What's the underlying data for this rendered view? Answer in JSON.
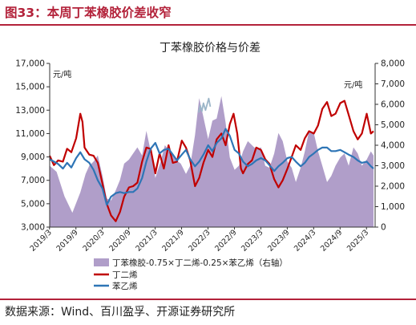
{
  "figure_title": "图33：本周丁苯橡胶价差收窄",
  "source_note": "数据来源：Wind、百川盈孚、开源证券研究所",
  "colors": {
    "brand": "#b3223a",
    "spread_fill": "#b09ec9",
    "butadiene": "#c00000",
    "styrene": "#2e75b6",
    "outlier": "#9bb5c8"
  },
  "chart_data": {
    "type": "line",
    "title": "丁苯橡胶价格与价差",
    "x_tick_labels": [
      "2019/3",
      "2019/9",
      "2020/3",
      "2020/9",
      "2021/3",
      "2021/9",
      "2022/3",
      "2022/9",
      "2023/3",
      "2023/9",
      "2024/3",
      "2024/9",
      "2025/3"
    ],
    "left_axis": {
      "unit": "元/吨",
      "min": 3000,
      "max": 17000,
      "ticks": [
        "3,000",
        "5,000",
        "7,000",
        "9,000",
        "11,000",
        "13,000",
        "15,000",
        "17,000"
      ]
    },
    "right_axis": {
      "unit": "元/吨",
      "min": 0,
      "max": 8000,
      "ticks": [
        "0",
        "1,000",
        "2,000",
        "3,000",
        "4,000",
        "5,000",
        "6,000",
        "7,000",
        "8,000"
      ]
    },
    "series": [
      {
        "name": "丁苯橡胶-0.75×丁二烯-0.25×苯乙烯（右轴）",
        "type": "area",
        "axis": "right",
        "points": [
          [
            2019.17,
            3000
          ],
          [
            2019.3,
            2700
          ],
          [
            2019.45,
            1500
          ],
          [
            2019.6,
            700
          ],
          [
            2019.75,
            1700
          ],
          [
            2019.85,
            2600
          ],
          [
            2019.92,
            3000
          ],
          [
            2020.0,
            3200
          ],
          [
            2020.08,
            3500
          ],
          [
            2020.17,
            2500
          ],
          [
            2020.25,
            1400
          ],
          [
            2020.33,
            1300
          ],
          [
            2020.42,
            1800
          ],
          [
            2020.5,
            2300
          ],
          [
            2020.58,
            3100
          ],
          [
            2020.67,
            3300
          ],
          [
            2020.75,
            3600
          ],
          [
            2020.83,
            3900
          ],
          [
            2020.92,
            3500
          ],
          [
            2021.0,
            4700
          ],
          [
            2021.1,
            3500
          ],
          [
            2021.17,
            2400
          ],
          [
            2021.27,
            3200
          ],
          [
            2021.35,
            4000
          ],
          [
            2021.45,
            3700
          ],
          [
            2021.55,
            3300
          ],
          [
            2021.65,
            3100
          ],
          [
            2021.75,
            2600
          ],
          [
            2021.83,
            3000
          ],
          [
            2021.92,
            4500
          ],
          [
            2022.0,
            6300
          ],
          [
            2022.07,
            5500
          ],
          [
            2022.17,
            4300
          ],
          [
            2022.25,
            5200
          ],
          [
            2022.33,
            5300
          ],
          [
            2022.42,
            6400
          ],
          [
            2022.5,
            5100
          ],
          [
            2022.58,
            3400
          ],
          [
            2022.67,
            2800
          ],
          [
            2022.75,
            3000
          ],
          [
            2022.83,
            3700
          ],
          [
            2022.92,
            4200
          ],
          [
            2023.0,
            4000
          ],
          [
            2023.08,
            3800
          ],
          [
            2023.17,
            3900
          ],
          [
            2023.25,
            3000
          ],
          [
            2023.33,
            2900
          ],
          [
            2023.42,
            3600
          ],
          [
            2023.5,
            4600
          ],
          [
            2023.58,
            4200
          ],
          [
            2023.67,
            3200
          ],
          [
            2023.75,
            2900
          ],
          [
            2023.83,
            2200
          ],
          [
            2023.92,
            2900
          ],
          [
            2024.0,
            3700
          ],
          [
            2024.08,
            4700
          ],
          [
            2024.17,
            4600
          ],
          [
            2024.25,
            3700
          ],
          [
            2024.33,
            3000
          ],
          [
            2024.42,
            2200
          ],
          [
            2024.5,
            2500
          ],
          [
            2024.58,
            3000
          ],
          [
            2024.67,
            3400
          ],
          [
            2024.75,
            3600
          ],
          [
            2024.83,
            3000
          ],
          [
            2024.92,
            3900
          ],
          [
            2025.0,
            3600
          ],
          [
            2025.08,
            3000
          ],
          [
            2025.17,
            3300
          ],
          [
            2025.25,
            3700
          ],
          [
            2025.3,
            3500
          ]
        ]
      },
      {
        "name": "丁二烯",
        "type": "line",
        "axis": "left",
        "points": [
          [
            2019.17,
            9100
          ],
          [
            2019.25,
            8300
          ],
          [
            2019.33,
            8700
          ],
          [
            2019.42,
            8600
          ],
          [
            2019.5,
            9700
          ],
          [
            2019.58,
            9400
          ],
          [
            2019.67,
            10600
          ],
          [
            2019.75,
            12700
          ],
          [
            2019.79,
            12000
          ],
          [
            2019.83,
            9800
          ],
          [
            2019.92,
            9200
          ],
          [
            2020.0,
            9100
          ],
          [
            2020.08,
            8500
          ],
          [
            2020.17,
            6700
          ],
          [
            2020.25,
            5000
          ],
          [
            2020.33,
            4000
          ],
          [
            2020.42,
            3500
          ],
          [
            2020.5,
            4300
          ],
          [
            2020.58,
            5600
          ],
          [
            2020.67,
            6400
          ],
          [
            2020.75,
            6500
          ],
          [
            2020.83,
            6800
          ],
          [
            2020.92,
            8600
          ],
          [
            2021.0,
            9800
          ],
          [
            2021.08,
            9700
          ],
          [
            2021.17,
            7600
          ],
          [
            2021.25,
            9300
          ],
          [
            2021.33,
            8000
          ],
          [
            2021.42,
            10000
          ],
          [
            2021.5,
            8500
          ],
          [
            2021.58,
            8600
          ],
          [
            2021.67,
            10400
          ],
          [
            2021.75,
            9800
          ],
          [
            2021.83,
            8700
          ],
          [
            2021.92,
            6500
          ],
          [
            2022.0,
            7200
          ],
          [
            2022.08,
            8500
          ],
          [
            2022.17,
            9600
          ],
          [
            2022.25,
            9000
          ],
          [
            2022.33,
            10500
          ],
          [
            2022.42,
            11000
          ],
          [
            2022.5,
            10000
          ],
          [
            2022.58,
            11800
          ],
          [
            2022.65,
            12700
          ],
          [
            2022.72,
            11000
          ],
          [
            2022.79,
            8000
          ],
          [
            2022.83,
            7600
          ],
          [
            2022.92,
            8400
          ],
          [
            2023.0,
            8700
          ],
          [
            2023.08,
            9800
          ],
          [
            2023.17,
            9600
          ],
          [
            2023.25,
            8800
          ],
          [
            2023.33,
            8400
          ],
          [
            2023.42,
            7100
          ],
          [
            2023.5,
            6400
          ],
          [
            2023.58,
            7000
          ],
          [
            2023.67,
            8000
          ],
          [
            2023.75,
            9000
          ],
          [
            2023.83,
            10000
          ],
          [
            2023.92,
            9600
          ],
          [
            2024.0,
            10600
          ],
          [
            2024.08,
            11200
          ],
          [
            2024.17,
            11000
          ],
          [
            2024.25,
            11700
          ],
          [
            2024.33,
            13100
          ],
          [
            2024.42,
            13700
          ],
          [
            2024.5,
            12500
          ],
          [
            2024.58,
            12700
          ],
          [
            2024.67,
            13600
          ],
          [
            2024.75,
            13800
          ],
          [
            2024.83,
            12600
          ],
          [
            2024.92,
            11200
          ],
          [
            2025.0,
            10500
          ],
          [
            2025.08,
            11000
          ],
          [
            2025.17,
            12700
          ],
          [
            2025.25,
            11000
          ],
          [
            2025.3,
            11200
          ]
        ]
      },
      {
        "name": "苯乙烯",
        "type": "line",
        "axis": "left",
        "points": [
          [
            2019.17,
            8800
          ],
          [
            2019.25,
            8600
          ],
          [
            2019.33,
            8400
          ],
          [
            2019.42,
            8000
          ],
          [
            2019.5,
            8500
          ],
          [
            2019.58,
            8100
          ],
          [
            2019.67,
            8900
          ],
          [
            2019.75,
            9400
          ],
          [
            2019.83,
            8800
          ],
          [
            2019.92,
            8500
          ],
          [
            2020.0,
            7900
          ],
          [
            2020.08,
            7000
          ],
          [
            2020.17,
            6300
          ],
          [
            2020.25,
            4900
          ],
          [
            2020.33,
            5600
          ],
          [
            2020.42,
            5900
          ],
          [
            2020.5,
            6000
          ],
          [
            2020.58,
            5900
          ],
          [
            2020.67,
            6000
          ],
          [
            2020.75,
            6000
          ],
          [
            2020.83,
            6300
          ],
          [
            2020.92,
            7200
          ],
          [
            2021.0,
            8600
          ],
          [
            2021.08,
            9700
          ],
          [
            2021.17,
            10200
          ],
          [
            2021.25,
            9300
          ],
          [
            2021.33,
            9600
          ],
          [
            2021.42,
            9700
          ],
          [
            2021.5,
            9200
          ],
          [
            2021.58,
            8700
          ],
          [
            2021.67,
            9200
          ],
          [
            2021.75,
            9600
          ],
          [
            2021.83,
            8800
          ],
          [
            2021.92,
            8200
          ],
          [
            2022.0,
            8600
          ],
          [
            2022.08,
            9200
          ],
          [
            2022.17,
            10000
          ],
          [
            2022.25,
            9500
          ],
          [
            2022.33,
            10200
          ],
          [
            2022.42,
            10600
          ],
          [
            2022.5,
            11400
          ],
          [
            2022.58,
            10800
          ],
          [
            2022.67,
            9600
          ],
          [
            2022.75,
            9300
          ],
          [
            2022.83,
            8600
          ],
          [
            2022.92,
            8200
          ],
          [
            2023.0,
            8400
          ],
          [
            2023.08,
            8700
          ],
          [
            2023.17,
            8900
          ],
          [
            2023.25,
            8700
          ],
          [
            2023.33,
            8300
          ],
          [
            2023.42,
            7800
          ],
          [
            2023.5,
            8200
          ],
          [
            2023.58,
            8500
          ],
          [
            2023.67,
            8900
          ],
          [
            2023.75,
            9000
          ],
          [
            2023.83,
            8600
          ],
          [
            2023.92,
            8200
          ],
          [
            2024.0,
            8500
          ],
          [
            2024.08,
            9000
          ],
          [
            2024.17,
            9300
          ],
          [
            2024.25,
            9600
          ],
          [
            2024.33,
            9800
          ],
          [
            2024.42,
            9800
          ],
          [
            2024.5,
            9500
          ],
          [
            2024.58,
            9500
          ],
          [
            2024.67,
            9600
          ],
          [
            2024.75,
            9400
          ],
          [
            2024.83,
            9200
          ],
          [
            2024.92,
            9000
          ],
          [
            2025.0,
            8700
          ],
          [
            2025.08,
            8500
          ],
          [
            2025.17,
            8600
          ],
          [
            2025.25,
            8200
          ],
          [
            2025.3,
            8000
          ]
        ]
      },
      {
        "name": "",
        "type": "line",
        "axis": "left",
        "points": [
          [
            2021.99,
            12800
          ],
          [
            2022.02,
            13400
          ],
          [
            2022.05,
            12900
          ],
          [
            2022.08,
            13600
          ],
          [
            2022.12,
            13000
          ],
          [
            2022.15,
            13500
          ],
          [
            2022.18,
            14000
          ],
          [
            2022.21,
            13300
          ]
        ]
      }
    ],
    "legend": {
      "position": "bottom",
      "entries": [
        "丁苯橡胶-0.75×丁二烯-0.25×苯乙烯（右轴）",
        "丁二烯",
        "苯乙烯"
      ]
    },
    "grid": false
  }
}
